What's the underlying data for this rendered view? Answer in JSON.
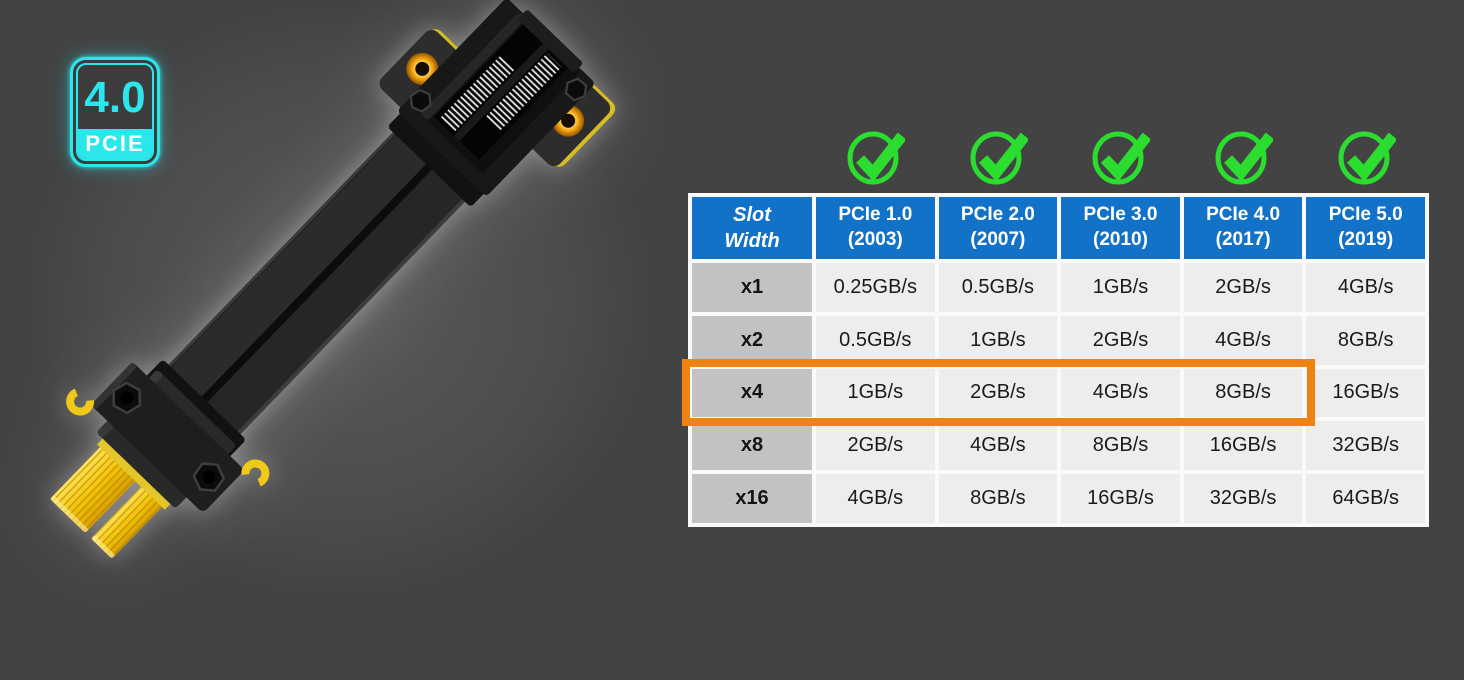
{
  "page": {
    "background_color": "#434343"
  },
  "badge": {
    "version": "4.0",
    "label": "PCIE",
    "accent_color": "#2BE6EA"
  },
  "product": {
    "description": "black PCIe x4 riser extension ribbon cable with gold edge connector"
  },
  "checkmarks": {
    "count": 5,
    "color": "#2BDD2F",
    "icon": "check-circle-icon"
  },
  "table": {
    "corner_lines": [
      "Slot",
      "Width"
    ],
    "columns": [
      {
        "line1": "PCIe 1.0",
        "line2": "(2003)"
      },
      {
        "line1": "PCIe 2.0",
        "line2": "(2007)"
      },
      {
        "line1": "PCIe 3.0",
        "line2": "(2010)"
      },
      {
        "line1": "PCIe 4.0",
        "line2": "(2017)"
      },
      {
        "line1": "PCIe 5.0",
        "line2": "(2019)"
      }
    ],
    "rows": [
      {
        "label": "x1",
        "values": [
          "0.25GB/s",
          "0.5GB/s",
          "1GB/s",
          "2GB/s",
          "4GB/s"
        ]
      },
      {
        "label": "x2",
        "values": [
          "0.5GB/s",
          "1GB/s",
          "2GB/s",
          "4GB/s",
          "8GB/s"
        ]
      },
      {
        "label": "x4",
        "values": [
          "1GB/s",
          "2GB/s",
          "4GB/s",
          "8GB/s",
          "16GB/s"
        ],
        "highlighted": true
      },
      {
        "label": "x8",
        "values": [
          "2GB/s",
          "4GB/s",
          "8GB/s",
          "16GB/s",
          "32GB/s"
        ]
      },
      {
        "label": "x16",
        "values": [
          "4GB/s",
          "8GB/s",
          "16GB/s",
          "32GB/s",
          "64GB/s"
        ]
      }
    ],
    "colors": {
      "header_bg": "#1272C8",
      "header_text": "#FFFFFF",
      "label_cell_bg": "#C2C2C2",
      "value_cell_bg": "#EDEDED",
      "cell_text": "#1A1A1A",
      "table_border": "#FAFAFA",
      "highlight_border": "#EE8212"
    },
    "highlight": {
      "row_label": "x4",
      "covers_columns": [
        "Slot Width",
        "PCIe 1.0",
        "PCIe 2.0",
        "PCIe 3.0",
        "PCIe 4.0"
      ]
    }
  },
  "chart_data": {
    "type": "table",
    "columns": [
      "Slot Width",
      "PCIe 1.0 (2003)",
      "PCIe 2.0 (2007)",
      "PCIe 3.0 (2010)",
      "PCIe 4.0 (2017)",
      "PCIe 5.0 (2019)"
    ],
    "rows": [
      [
        "x1",
        "0.25GB/s",
        "0.5GB/s",
        "1GB/s",
        "2GB/s",
        "4GB/s"
      ],
      [
        "x2",
        "0.5GB/s",
        "1GB/s",
        "2GB/s",
        "4GB/s",
        "8GB/s"
      ],
      [
        "x4",
        "1GB/s",
        "2GB/s",
        "4GB/s",
        "8GB/s",
        "16GB/s"
      ],
      [
        "x8",
        "2GB/s",
        "4GB/s",
        "8GB/s",
        "16GB/s",
        "32GB/s"
      ],
      [
        "x16",
        "4GB/s",
        "8GB/s",
        "16GB/s",
        "32GB/s",
        "64GB/s"
      ]
    ],
    "highlighted_row": "x4",
    "legend_position": "none",
    "notes": "x4 row outlined in orange through the PCIe 4.0 column; green check marks above each PCIe generation column"
  }
}
